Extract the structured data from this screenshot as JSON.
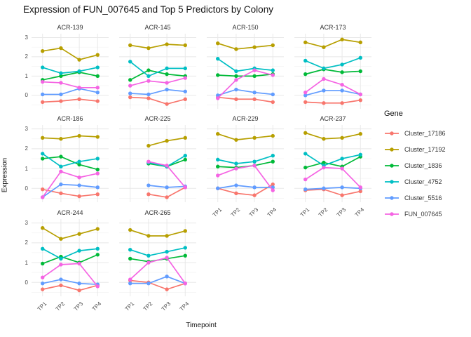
{
  "title": "Expression of FUN_007645 and Top 5 Predictors by Colony",
  "axes": {
    "x_title": "Timepoint",
    "y_title": "Expression",
    "x_ticks": [
      "TP1",
      "TP2",
      "TP3",
      "TP4"
    ],
    "y_ticks": [
      "3",
      "2",
      "1",
      "0"
    ]
  },
  "legend": {
    "title": "Gene",
    "entries": [
      {
        "label": "Cluster_17186",
        "color": "#F8766D"
      },
      {
        "label": "Cluster_17192",
        "color": "#B79F00"
      },
      {
        "label": "Cluster_1836",
        "color": "#00BA38"
      },
      {
        "label": "Cluster_4752",
        "color": "#00BFC4"
      },
      {
        "label": "Cluster_5516",
        "color": "#619CFF"
      },
      {
        "label": "FUN_007645",
        "color": "#F564E3"
      }
    ]
  },
  "chart_data": {
    "type": "line",
    "title": "Expression of FUN_007645 and Top 5 Predictors by Colony",
    "xlabel": "Timepoint",
    "ylabel": "Expression",
    "x": [
      "TP1",
      "TP2",
      "TP3",
      "TP4"
    ],
    "ylim": [
      -0.7,
      3.2
    ],
    "y_major_ticks": [
      0,
      1,
      2,
      3
    ],
    "grid": true,
    "legend_position": "right",
    "series_order": [
      "Cluster_17186",
      "Cluster_17192",
      "Cluster_1836",
      "Cluster_4752",
      "Cluster_5516",
      "FUN_007645"
    ],
    "series_colors": {
      "Cluster_17186": "#F8766D",
      "Cluster_17192": "#B79F00",
      "Cluster_1836": "#00BA38",
      "Cluster_4752": "#00BFC4",
      "Cluster_5516": "#619CFF",
      "FUN_007645": "#F564E3"
    },
    "facets": [
      {
        "name": "ACR-139",
        "values": [
          [
            -0.35,
            -0.3,
            -0.2,
            -0.3
          ],
          [
            2.3,
            2.45,
            1.85,
            2.1
          ],
          [
            0.8,
            1.0,
            1.2,
            1.0
          ],
          [
            1.45,
            1.15,
            1.25,
            1.45
          ],
          [
            0.05,
            0.05,
            0.35,
            0.15
          ],
          [
            0.7,
            0.65,
            0.4,
            0.4
          ]
        ]
      },
      {
        "name": "ACR-145",
        "values": [
          [
            -0.1,
            -0.15,
            -0.45,
            -0.2
          ],
          [
            2.6,
            2.45,
            2.65,
            2.6
          ],
          [
            0.8,
            1.3,
            1.1,
            1.0
          ],
          [
            1.75,
            1.0,
            1.4,
            1.4
          ],
          [
            0.1,
            0.05,
            0.3,
            0.2
          ],
          [
            0.5,
            0.75,
            0.65,
            0.9
          ]
        ]
      },
      {
        "name": "ACR-150",
        "values": [
          [
            -0.1,
            -0.2,
            -0.2,
            -0.35
          ],
          [
            2.7,
            2.4,
            2.5,
            2.6
          ],
          [
            1.05,
            1.0,
            1.0,
            1.1
          ],
          [
            1.9,
            1.25,
            1.4,
            1.3
          ],
          [
            0.0,
            0.3,
            0.15,
            0.05
          ],
          [
            -0.15,
            0.8,
            1.3,
            1.05
          ]
        ]
      },
      {
        "name": "ACR-173",
        "values": [
          [
            -0.35,
            -0.4,
            -0.4,
            -0.25
          ],
          [
            2.75,
            2.5,
            2.9,
            2.75
          ],
          [
            1.1,
            1.35,
            1.2,
            1.25
          ],
          [
            1.8,
            1.4,
            1.6,
            1.95
          ],
          [
            0.0,
            0.25,
            0.25,
            0.05
          ],
          [
            0.15,
            0.85,
            0.55,
            0.05
          ]
        ]
      },
      {
        "name": "ACR-186",
        "values": [
          [
            -0.05,
            -0.25,
            -0.4,
            -0.3
          ],
          [
            2.55,
            2.5,
            2.65,
            2.6
          ],
          [
            1.5,
            1.6,
            1.2,
            0.95
          ],
          [
            1.75,
            1.1,
            1.35,
            1.5
          ],
          [
            -0.45,
            0.2,
            0.15,
            0.05
          ],
          [
            -0.45,
            0.85,
            0.55,
            0.75
          ]
        ]
      },
      {
        "name": "ACR-225",
        "values": [
          [
            null,
            -0.3,
            -0.45,
            0.05
          ],
          [
            null,
            2.15,
            2.4,
            2.55
          ],
          [
            null,
            1.25,
            1.1,
            1.45
          ],
          [
            null,
            1.3,
            1.1,
            1.65
          ],
          [
            null,
            0.15,
            0.05,
            0.1
          ],
          [
            null,
            1.35,
            1.15,
            0.05
          ]
        ]
      },
      {
        "name": "ACR-229",
        "values": [
          [
            0.0,
            -0.25,
            -0.35,
            0.2
          ],
          [
            2.75,
            2.45,
            2.55,
            2.65
          ],
          [
            1.1,
            1.05,
            1.15,
            1.35
          ],
          [
            1.45,
            1.25,
            1.35,
            1.65
          ],
          [
            0.0,
            0.15,
            0.05,
            0.05
          ],
          [
            0.65,
            1.0,
            1.15,
            -0.1
          ]
        ]
      },
      {
        "name": "ACR-237",
        "values": [
          [
            -0.1,
            -0.05,
            -0.35,
            -0.15
          ],
          [
            2.8,
            2.5,
            2.55,
            2.75
          ],
          [
            1.05,
            1.3,
            1.1,
            1.6
          ],
          [
            1.75,
            1.15,
            1.5,
            1.7
          ],
          [
            -0.05,
            0.0,
            0.05,
            0.0
          ],
          [
            0.45,
            1.05,
            1.0,
            0.05
          ]
        ]
      },
      {
        "name": "ACR-244",
        "values": [
          [
            -0.35,
            -0.15,
            -0.4,
            -0.15
          ],
          [
            2.75,
            2.2,
            2.45,
            2.7
          ],
          [
            0.95,
            1.3,
            1.0,
            1.4
          ],
          [
            1.7,
            1.2,
            1.6,
            1.7
          ],
          [
            -0.05,
            0.15,
            -0.05,
            -0.1
          ],
          [
            0.25,
            0.9,
            0.95,
            -0.2
          ]
        ]
      },
      {
        "name": "ACR-265",
        "values": [
          [
            0.1,
            0.0,
            -0.35,
            -0.05
          ],
          [
            2.65,
            2.35,
            2.35,
            2.6
          ],
          [
            1.2,
            1.05,
            1.2,
            1.35
          ],
          [
            1.65,
            1.35,
            1.55,
            1.75
          ],
          [
            -0.05,
            -0.05,
            0.3,
            -0.05
          ],
          [
            0.15,
            1.0,
            1.25,
            -0.05
          ]
        ]
      }
    ]
  },
  "style_colors": {
    "grid_major": "#E8E8E8",
    "grid_minor": "#F3F3F3",
    "text_primary": "#141414",
    "text_axis": "#4d4d4d"
  }
}
